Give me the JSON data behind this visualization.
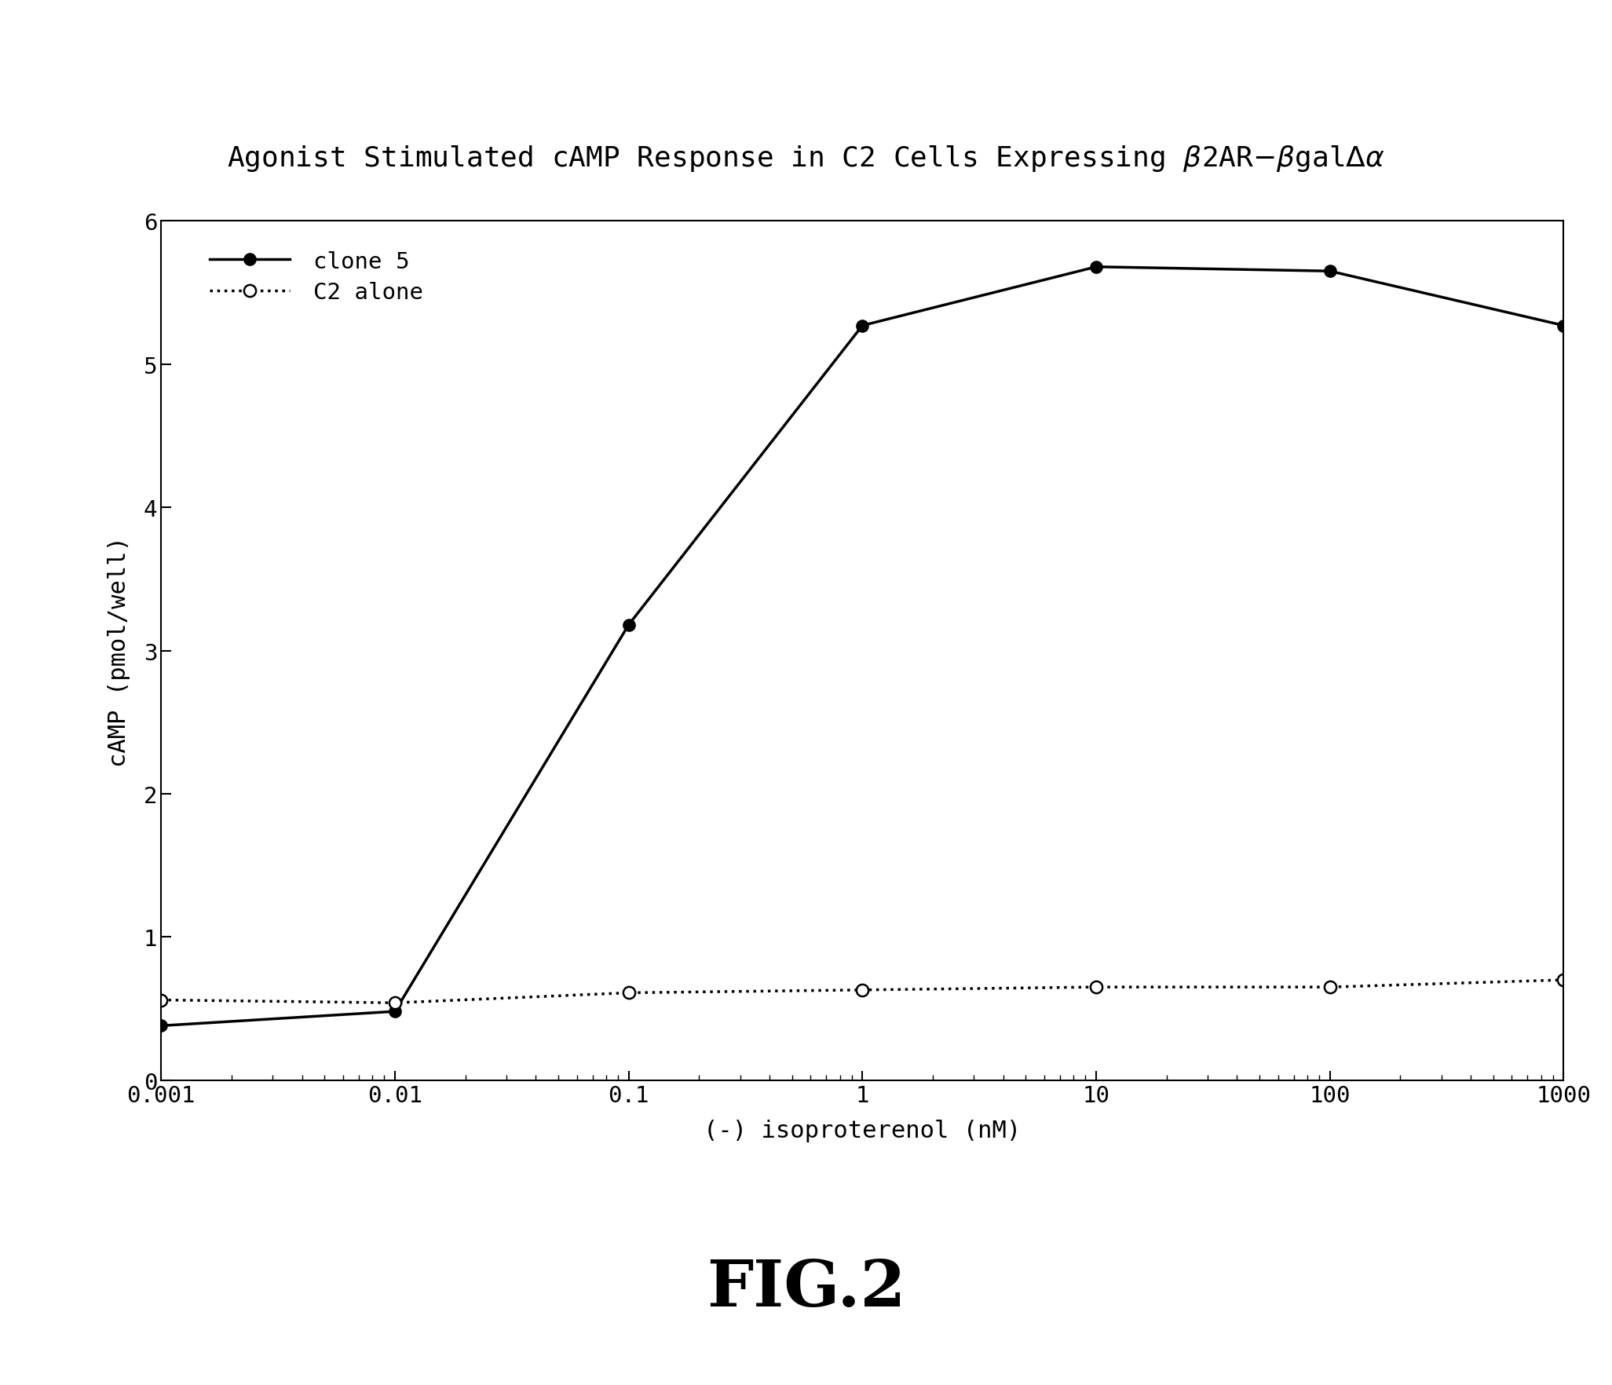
{
  "xlabel": "(-) isoproterenol (nM)",
  "ylabel": "cAMP (pmol/well)",
  "figcaption": "FIG.2",
  "ylim": [
    0,
    6
  ],
  "yticks": [
    0,
    1,
    2,
    3,
    4,
    5,
    6
  ],
  "xtick_values": [
    0.001,
    0.01,
    0.1,
    1,
    10,
    100,
    1000
  ],
  "xtick_labels": [
    "0.001",
    "0.01",
    "0.1",
    "1",
    "10",
    "100",
    "1000"
  ],
  "clone5_x": [
    0.001,
    0.01,
    0.1,
    1,
    10,
    100,
    1000
  ],
  "clone5_y": [
    0.38,
    0.48,
    3.18,
    5.27,
    5.68,
    5.65,
    5.27
  ],
  "c2alone_x": [
    0.001,
    0.01,
    0.1,
    1,
    10,
    100,
    1000
  ],
  "c2alone_y": [
    0.56,
    0.54,
    0.61,
    0.63,
    0.65,
    0.65,
    0.7
  ],
  "legend_clone5": "clone 5",
  "legend_c2alone": "C2 alone",
  "line_color": "#000000",
  "bg_color": "#ffffff",
  "title_fontsize": 26,
  "label_fontsize": 22,
  "tick_fontsize": 21,
  "legend_fontsize": 21,
  "caption_fontsize": 60,
  "marker_size": 11,
  "linewidth": 2.5
}
